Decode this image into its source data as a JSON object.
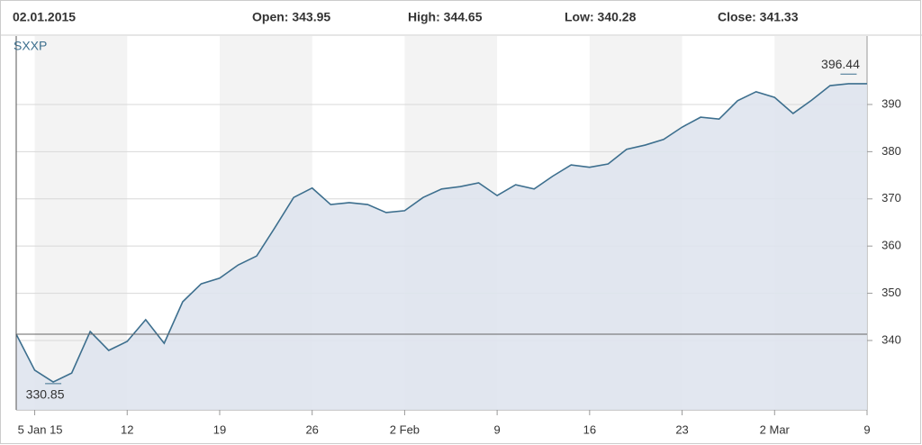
{
  "header": {
    "date": "02.01.2015",
    "open": "Open: 343.95",
    "high": "High: 344.65",
    "low": "Low: 340.28",
    "close": "Close: 341.33"
  },
  "chart_data": {
    "type": "area",
    "color": "#3d6f8e",
    "fill": "#dfe4ee",
    "grid": true,
    "series": [
      {
        "name": "SXXP",
        "color": "#3d6f8e",
        "x": [
          0,
          1,
          2,
          3,
          4,
          5,
          6,
          7,
          8,
          9,
          10,
          11,
          12,
          13,
          14,
          15,
          16,
          17,
          18,
          19,
          20,
          21,
          22,
          23,
          24,
          25,
          26,
          27,
          28,
          29,
          30,
          31,
          32,
          33,
          34,
          35,
          36,
          37,
          38,
          39,
          40,
          41,
          42,
          43,
          44,
          45,
          46
        ],
        "values": [
          341.33,
          333.7,
          331.2,
          333.1,
          341.9,
          337.9,
          339.8,
          344.4,
          339.4,
          348.2,
          352,
          353.2,
          356,
          357.9,
          364,
          370.3,
          372.3,
          368.8,
          369.2,
          368.8,
          367.1,
          367.5,
          370.3,
          372.1,
          372.6,
          373.4,
          370.7,
          373,
          372.1,
          374.8,
          377.2,
          376.7,
          377.4,
          380.5,
          381.4,
          382.6,
          385.2,
          387.3,
          386.9,
          390.8,
          392.7,
          391.5,
          388.1,
          390.9,
          394,
          394.4,
          394.4
        ]
      }
    ],
    "annotations": [
      {
        "label": "396.44",
        "value": 396.44,
        "x": 45
      },
      {
        "label": "330.85",
        "value": 330.85,
        "x": 2
      }
    ],
    "xlim": [
      0,
      46
    ],
    "xticks": [
      {
        "value": 1,
        "label": "5 Jan 15"
      },
      {
        "value": 6,
        "label": "12"
      },
      {
        "value": 11,
        "label": "19"
      },
      {
        "value": 16,
        "label": "26"
      },
      {
        "value": 21,
        "label": "2 Feb"
      },
      {
        "value": 26,
        "label": "9"
      },
      {
        "value": 31,
        "label": "16"
      },
      {
        "value": 36,
        "label": "23"
      },
      {
        "value": 41,
        "label": "2 Mar"
      },
      {
        "value": 46,
        "label": "9"
      }
    ],
    "ylim": [
      325.3,
      404.5
    ],
    "yticks": [
      340,
      350,
      360,
      370,
      380,
      390
    ]
  }
}
